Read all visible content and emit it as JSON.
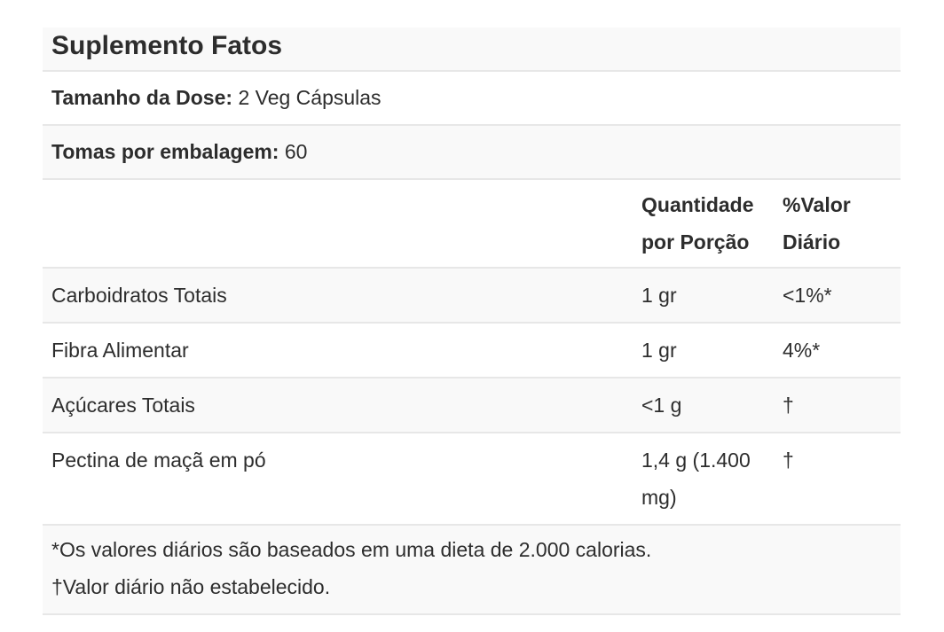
{
  "panel": {
    "title": "Suplemento Fatos",
    "serving_size": {
      "label": "Tamanho da Dose:",
      "value": "2 Veg Cápsulas"
    },
    "servings_per_container": {
      "label": "Tomas por embalagem:",
      "value": "60"
    },
    "columns": {
      "amount_header": "Quantidade por Porção",
      "dv_header": "%Valor Diário"
    },
    "rows": [
      {
        "name": "Carboidratos Totais",
        "amount": "1 gr",
        "dv": "<1%*"
      },
      {
        "name": "Fibra Alimentar",
        "amount": "1 gr",
        "dv": "4%*"
      },
      {
        "name": "Açúcares Totais",
        "amount": "<1 g",
        "dv": "†"
      },
      {
        "name": "Pectina de maçã em pó",
        "amount": "1,4 g (1.400 mg)",
        "dv": "†"
      }
    ],
    "footnotes": [
      "*Os valores diários são baseados em uma dieta de 2.000 calorias.",
      "†Valor diário não estabelecido."
    ],
    "colors": {
      "row_shade": "#f9f9f9",
      "separator": "#e7e7e7",
      "text": "#2d2d2d",
      "background": "#ffffff"
    }
  }
}
